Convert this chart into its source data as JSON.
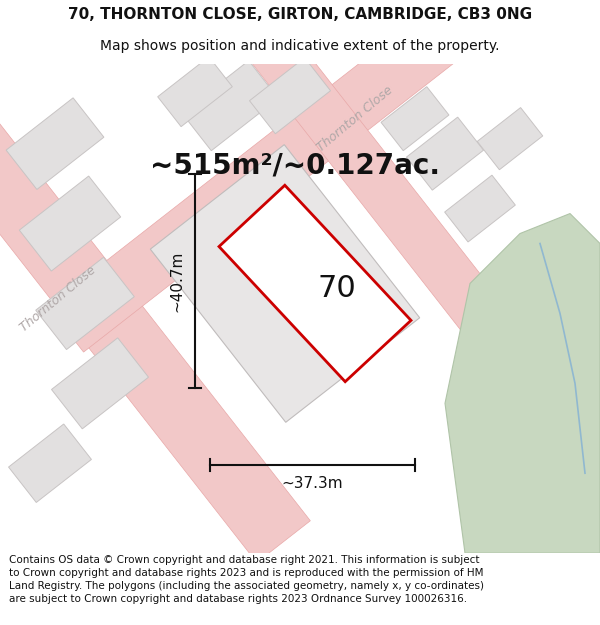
{
  "title_line1": "70, THORNTON CLOSE, GIRTON, CAMBRIDGE, CB3 0NG",
  "title_line2": "Map shows position and indicative extent of the property.",
  "area_text": "~515m²/~0.127ac.",
  "label_70": "70",
  "dim_height": "~40.7m",
  "dim_width": "~37.3m",
  "road_label_left": "Thornton Close",
  "road_label_top": "Thornton Close",
  "footer_text": "Contains OS data © Crown copyright and database right 2021. This information is subject to Crown copyright and database rights 2023 and is reproduced with the permission of HM Land Registry. The polygons (including the associated geometry, namely x, y co-ordinates) are subject to Crown copyright and database rights 2023 Ordnance Survey 100026316.",
  "bg_color": "#ffffff",
  "map_bg": "#f8f5f5",
  "road_fill": "#f2c8c8",
  "road_edge": "#e8a8a8",
  "parcel_fill": "#e2e0e0",
  "parcel_edge": "#c8c4c4",
  "main_parcel_fill": "#e8e6e6",
  "main_parcel_edge": "#c0bcbc",
  "green_fill": "#c8d8c0",
  "green_edge": "#b0c4a8",
  "blue_color": "#90b8d0",
  "red_color": "#cc0000",
  "dim_color": "#111111",
  "text_color": "#111111",
  "road_text_color": "#b0a8a8",
  "title_fontsize": 11,
  "subtitle_fontsize": 10,
  "area_fontsize": 20,
  "label_fontsize": 22,
  "dim_fontsize": 11,
  "footer_fontsize": 7.5,
  "road_fontsize": 9,
  "ang": 38
}
